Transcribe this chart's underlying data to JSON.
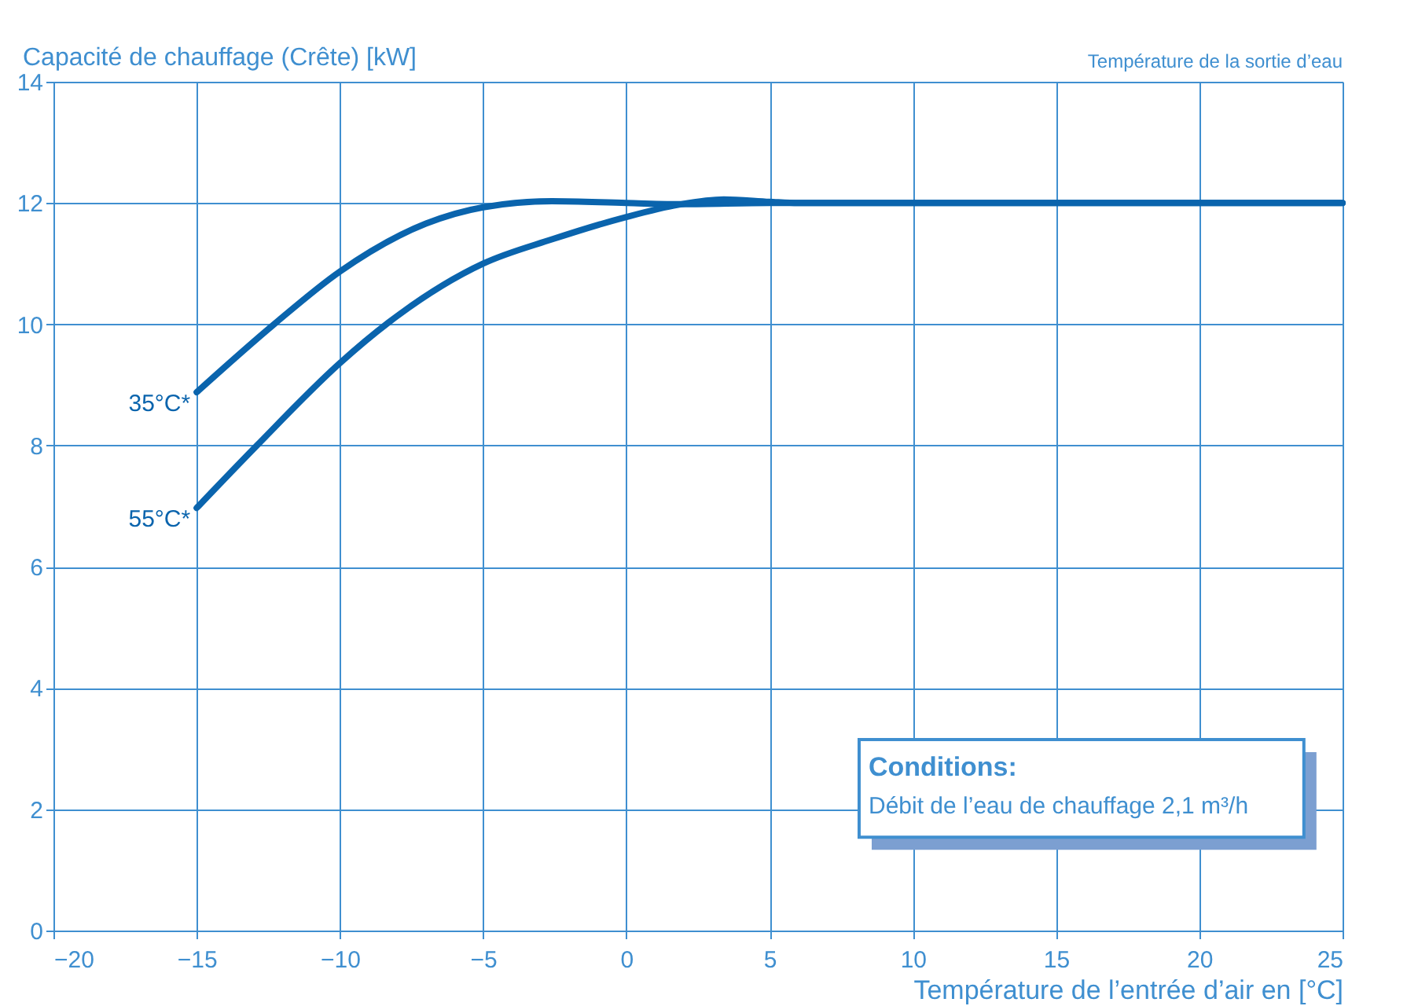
{
  "chart_data": {
    "type": "line",
    "ylabel": "Capacité de chauffage (Crête) [kW]",
    "xlabel": "Température de l’entrée d’air en [°C]",
    "xlim": [
      -20,
      25
    ],
    "xticks": [
      -20,
      -15,
      -10,
      -5,
      0,
      5,
      10,
      15,
      20,
      25
    ],
    "ylim": [
      0,
      14
    ],
    "yticks": [
      0,
      2,
      4,
      6,
      8,
      10,
      12,
      14
    ],
    "grid": true,
    "legend": false,
    "marker": "none",
    "line_style": "solid",
    "series": [
      {
        "name": "35°C*",
        "color": "#0a64ad",
        "x": [
          -15,
          -12.3,
          -10,
          -7,
          -5,
          -2.6,
          0,
          2,
          5,
          10,
          15,
          20,
          25
        ],
        "values": [
          8.88,
          10.0,
          10.87,
          11.66,
          11.93,
          12.03,
          12.0,
          11.98,
          12.0,
          12.0,
          12.0,
          12.0,
          12.0
        ]
      },
      {
        "name": "55°C*",
        "color": "#0a64ad",
        "x": [
          -15,
          -12.9,
          -10,
          -8.3,
          -5,
          -2.6,
          0,
          1.8,
          3.4,
          5,
          6,
          10,
          15,
          20,
          25
        ],
        "values": [
          6.97,
          8.0,
          9.36,
          10.03,
          11.0,
          11.4,
          11.77,
          11.97,
          12.06,
          12.02,
          12.0,
          12.0,
          12.0,
          12.0,
          12.0
        ]
      }
    ],
    "annotations": [
      "Température de la sortie d’eau",
      "Conditions:",
      "Débit de l’eau de chauffage   2,1 m³/h"
    ]
  }
}
